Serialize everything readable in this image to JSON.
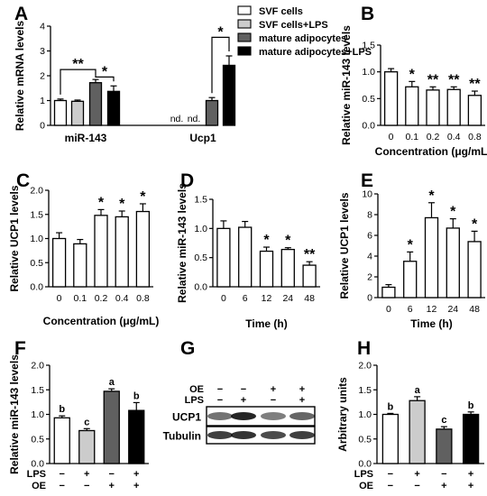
{
  "chart_data": [
    {
      "id": "A",
      "type": "bar",
      "panel_label": "A",
      "ylabel": "Relative mRNA levels",
      "ylim": [
        0,
        4
      ],
      "yticks": [
        0,
        1,
        2,
        3,
        4
      ],
      "groups": [
        "miR-143",
        "Ucp1"
      ],
      "legend": {
        "placement": "top-right",
        "entries": [
          "SVF cells",
          "SVF cells+LPS",
          "mature adipocytes",
          "mature adipocytes+LPS"
        ]
      },
      "series": [
        {
          "name": "SVF cells",
          "color": "#ffffff",
          "values": [
            1.0,
            null
          ],
          "errors": [
            0.06,
            0
          ],
          "labels": [
            "",
            "nd."
          ]
        },
        {
          "name": "SVF cells+LPS",
          "color": "#cccccc",
          "values": [
            0.97,
            null
          ],
          "errors": [
            0.05,
            0
          ],
          "labels": [
            "",
            "nd."
          ]
        },
        {
          "name": "mature adipocytes",
          "color": "#606060",
          "values": [
            1.72,
            1.0
          ],
          "errors": [
            0.13,
            0.12
          ],
          "labels": [
            "",
            ""
          ]
        },
        {
          "name": "mature adipocytes+LPS",
          "color": "#000000",
          "values": [
            1.37,
            2.42
          ],
          "errors": [
            0.22,
            0.38
          ],
          "labels": [
            "",
            ""
          ]
        }
      ],
      "annotations": [
        {
          "text": "**",
          "from": [
            0,
            0
          ],
          "to": [
            0,
            2
          ],
          "y": 2.25
        },
        {
          "text": "*",
          "from": [
            0,
            2
          ],
          "to": [
            0,
            3
          ],
          "y": 1.95
        },
        {
          "text": "*",
          "from": [
            1,
            2
          ],
          "to": [
            1,
            3
          ],
          "y": 3.55
        }
      ]
    },
    {
      "id": "B",
      "type": "bar",
      "panel_label": "B",
      "ylabel": "Relative miR-143 levels",
      "xlabel": "Concentration (μg/mL)",
      "ylim": [
        0,
        1.5
      ],
      "yticks": [
        0,
        0.5,
        1.0,
        1.5
      ],
      "ytick_labels": [
        "0.0",
        "0.5",
        "1.0",
        "1.5"
      ],
      "categories": [
        "0",
        "0.1",
        "0.2",
        "0.4",
        "0.8"
      ],
      "values": [
        1.0,
        0.72,
        0.66,
        0.67,
        0.56
      ],
      "errors": [
        0.06,
        0.1,
        0.06,
        0.05,
        0.08
      ],
      "marks": [
        "",
        "*",
        "**",
        "**",
        "**"
      ]
    },
    {
      "id": "C",
      "type": "bar",
      "panel_label": "C",
      "ylabel": "Relative UCP1 levels",
      "xlabel": "Concentration (μg/mL)",
      "ylim": [
        0,
        2.0
      ],
      "yticks": [
        0,
        0.5,
        1.0,
        1.5,
        2.0
      ],
      "ytick_labels": [
        "0.0",
        "0.5",
        "1.0",
        "1.5",
        "2.0"
      ],
      "categories": [
        "0",
        "0.1",
        "0.2",
        "0.4",
        "0.8"
      ],
      "values": [
        1.0,
        0.89,
        1.48,
        1.45,
        1.56
      ],
      "errors": [
        0.12,
        0.09,
        0.12,
        0.12,
        0.16
      ],
      "marks": [
        "",
        "",
        "*",
        "*",
        "*"
      ]
    },
    {
      "id": "D",
      "type": "bar",
      "panel_label": "D",
      "ylabel": "Relative miR-143 levels",
      "xlabel": "Time (h)",
      "ylim": [
        0,
        1.5
      ],
      "yticks": [
        0,
        0.5,
        1.0,
        1.5
      ],
      "ytick_labels": [
        "0.0",
        "0.5",
        "1.0",
        "1.5"
      ],
      "categories": [
        "0",
        "6",
        "12",
        "24",
        "48"
      ],
      "values": [
        1.0,
        1.02,
        0.61,
        0.64,
        0.37
      ],
      "errors": [
        0.13,
        0.1,
        0.07,
        0.03,
        0.06
      ],
      "marks": [
        "",
        "",
        "*",
        "*",
        "**"
      ]
    },
    {
      "id": "E",
      "type": "bar",
      "panel_label": "E",
      "ylabel": "Relative UCP1 levels",
      "xlabel": "Time (h)",
      "ylim": [
        0,
        10
      ],
      "yticks": [
        0,
        2,
        4,
        6,
        8,
        10
      ],
      "ytick_labels": [
        "0",
        "2",
        "4",
        "6",
        "8",
        "10"
      ],
      "categories": [
        "0",
        "6",
        "12",
        "24",
        "48"
      ],
      "values": [
        1.0,
        3.5,
        7.7,
        6.7,
        5.4
      ],
      "errors": [
        0.25,
        0.9,
        1.45,
        0.9,
        1.0
      ],
      "marks": [
        "",
        "*",
        "*",
        "*",
        "*"
      ]
    },
    {
      "id": "F",
      "type": "bar",
      "panel_label": "F",
      "ylabel": "Relative miR-143 levels",
      "ylim": [
        0,
        2.0
      ],
      "yticks": [
        0,
        0.5,
        1.0,
        1.5,
        2.0
      ],
      "ytick_labels": [
        "0.0",
        "0.5",
        "1.0",
        "1.5",
        "2.0"
      ],
      "conditions": {
        "LPS": [
          "−",
          "+",
          "−",
          "+"
        ],
        "OE": [
          "−",
          "−",
          "+",
          "+"
        ]
      },
      "values": [
        0.93,
        0.67,
        1.47,
        1.08
      ],
      "errors": [
        0.04,
        0.04,
        0.05,
        0.16
      ],
      "colors": [
        "#ffffff",
        "#cccccc",
        "#606060",
        "#000000"
      ],
      "letters": [
        "b",
        "c",
        "a",
        "b"
      ]
    },
    {
      "id": "H",
      "type": "bar",
      "panel_label": "H",
      "ylabel": "Arbitrary units",
      "ylim": [
        0,
        2.0
      ],
      "yticks": [
        0,
        0.5,
        1.0,
        1.5,
        2.0
      ],
      "ytick_labels": [
        "0.0",
        "0.5",
        "1.0",
        "1.5",
        "2.0"
      ],
      "conditions": {
        "LPS": [
          "−",
          "+",
          "−",
          "+"
        ],
        "OE": [
          "−",
          "−",
          "+",
          "+"
        ]
      },
      "values": [
        1.0,
        1.28,
        0.7,
        1.0
      ],
      "errors": [
        0.02,
        0.08,
        0.05,
        0.05
      ],
      "colors": [
        "#ffffff",
        "#cccccc",
        "#606060",
        "#000000"
      ],
      "letters": [
        "b",
        "a",
        "c",
        "b"
      ]
    }
  ],
  "blot": {
    "panel_label": "G",
    "row_labels": [
      "OE",
      "LPS"
    ],
    "oe": [
      "−",
      "−",
      "+",
      "+"
    ],
    "lps": [
      "−",
      "+",
      "−",
      "+"
    ],
    "bands": [
      "UCP1",
      "Tubulin"
    ]
  }
}
